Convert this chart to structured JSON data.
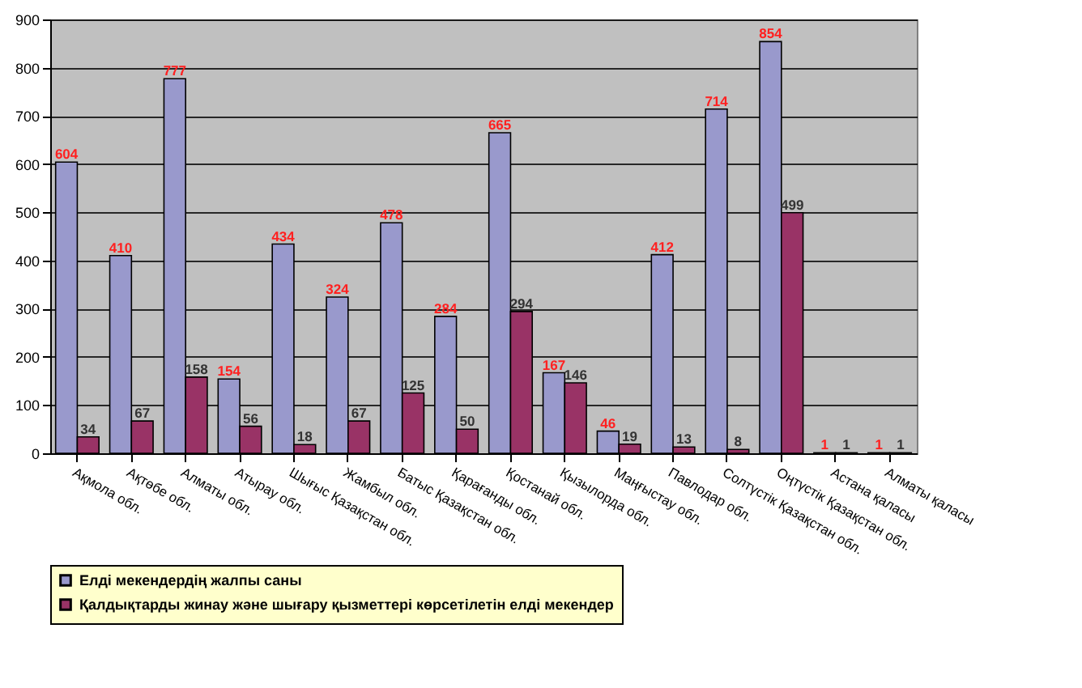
{
  "chart_data": {
    "type": "bar",
    "categories": [
      "Ақмола обл.",
      "Ақтөбе обл.",
      "Алматы обл.",
      "Атырау обл.",
      "Шығыс Қазақстан обл.",
      "Жамбыл обл.",
      "Батыс Қазақстан обл.",
      "Қарағанды обл.",
      "Қостанай обл.",
      "Қызылорда обл.",
      "Маңғыстау обл.",
      "Павлодар обл.",
      "Солтүстік Қазақстан обл.",
      "Оңтүстік Қазақстан обл.",
      "Астана қаласы",
      "Алматы қаласы"
    ],
    "series": [
      {
        "name": "Елді мекендердің жалпы саны",
        "color": "#9999cc",
        "values": [
          604,
          410,
          777,
          154,
          434,
          324,
          478,
          284,
          665,
          167,
          46,
          412,
          714,
          854,
          1,
          1
        ]
      },
      {
        "name": "Қалдықтарды жинау және шығару қызметтері көрсетілетін елді мекендер",
        "color": "#993366",
        "values": [
          34,
          67,
          158,
          56,
          18,
          67,
          125,
          50,
          294,
          146,
          19,
          13,
          8,
          499,
          1,
          1
        ]
      }
    ],
    "ylim": [
      0,
      900
    ],
    "yticks": [
      0,
      100,
      200,
      300,
      400,
      500,
      600,
      700,
      800,
      900
    ],
    "grid": "y",
    "legend": "bottom",
    "data_labels": true
  }
}
